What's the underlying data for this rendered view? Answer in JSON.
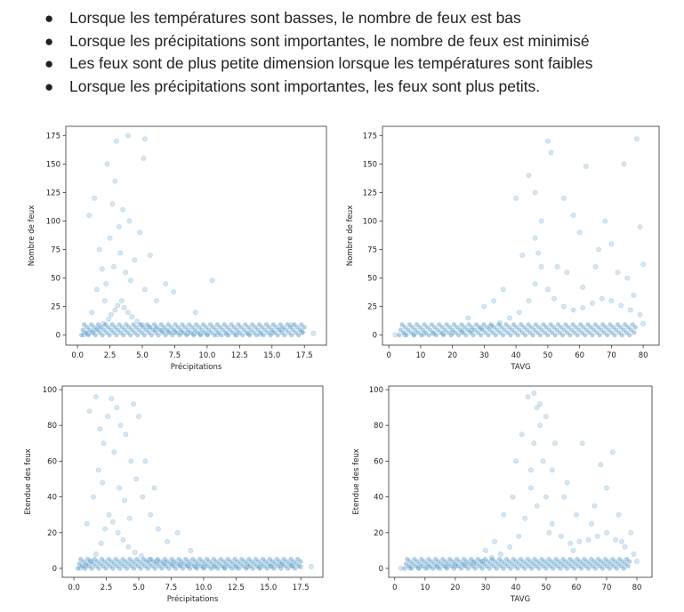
{
  "bullets": [
    "Lorsque les températures sont basses, le nombre de feux est bas",
    "Lorsque les précipitations sont importantes, le nombre de feux est minimisé",
    "Les feux sont de plus petite dimension lorsque les températures sont faibles",
    "Lorsque les précipitations sont importantes, les feux sont plus petits."
  ],
  "colors": {
    "points": "#1f77b4",
    "frame": "#333333"
  },
  "chart_data": [
    {
      "type": "scatter",
      "xlabel": "Précipitations",
      "ylabel": "Nombre de feux",
      "xlim": [
        -0.9,
        19.2
      ],
      "ylim": [
        -8.8,
        183
      ],
      "xticks": [
        "0.0",
        "2.5",
        "5.0",
        "7.5",
        "10.0",
        "12.5",
        "15.0",
        "17.5"
      ],
      "xtick_values": [
        0,
        2.5,
        5,
        7.5,
        10,
        12.5,
        15,
        17.5
      ],
      "yticks": [
        "0",
        "25",
        "50",
        "75",
        "100",
        "125",
        "150",
        "175"
      ],
      "ytick_values": [
        0,
        25,
        50,
        75,
        100,
        125,
        150,
        175
      ],
      "points": [
        [
          0.5,
          0.4
        ],
        [
          0.8,
          1.5
        ],
        [
          1.2,
          3
        ],
        [
          1.6,
          6
        ],
        [
          2.0,
          10
        ],
        [
          2.4,
          14
        ],
        [
          2.6,
          18
        ],
        [
          2.9,
          22
        ],
        [
          3.1,
          26
        ],
        [
          3.4,
          30
        ],
        [
          3.6,
          24
        ],
        [
          3.9,
          20
        ],
        [
          4.2,
          16
        ],
        [
          4.6,
          12
        ],
        [
          5.0,
          9
        ],
        [
          5.5,
          7
        ],
        [
          6.0,
          5
        ],
        [
          6.5,
          4
        ],
        [
          7.0,
          3
        ],
        [
          7.5,
          2.5
        ],
        [
          8.0,
          2
        ],
        [
          8.5,
          1.5
        ],
        [
          9.0,
          1.2
        ],
        [
          9.5,
          1
        ],
        [
          10.0,
          0.8
        ],
        [
          10.8,
          0.5
        ],
        [
          11.5,
          0.6
        ],
        [
          12.3,
          0.4
        ],
        [
          13.2,
          1
        ],
        [
          14.1,
          0.7
        ],
        [
          15.0,
          2
        ],
        [
          15.7,
          5
        ],
        [
          16.5,
          9
        ],
        [
          17.3,
          3
        ],
        [
          18.2,
          1.5
        ],
        [
          2.2,
          45
        ],
        [
          2.8,
          60
        ],
        [
          3.3,
          72
        ],
        [
          3.7,
          55
        ],
        [
          4.1,
          48
        ],
        [
          2.5,
          85
        ],
        [
          3.2,
          95
        ],
        [
          4.4,
          66
        ],
        [
          5.2,
          40
        ],
        [
          6.1,
          30
        ],
        [
          1.5,
          40
        ],
        [
          1.1,
          20
        ],
        [
          0.9,
          105
        ],
        [
          1.3,
          120
        ],
        [
          2.3,
          150
        ],
        [
          2.9,
          135
        ],
        [
          3.5,
          110
        ],
        [
          4.0,
          100
        ],
        [
          4.8,
          90
        ],
        [
          5.6,
          70
        ],
        [
          6.8,
          45
        ],
        [
          7.4,
          38
        ],
        [
          9.1,
          20
        ],
        [
          10.4,
          48
        ],
        [
          2.1,
          30
        ],
        [
          1.9,
          58
        ],
        [
          3.0,
          170
        ],
        [
          3.9,
          175
        ],
        [
          5.1,
          155
        ],
        [
          5.2,
          172
        ],
        [
          1.7,
          75
        ],
        [
          2.7,
          115
        ]
      ]
    },
    {
      "type": "scatter",
      "xlabel": "TAVG",
      "ylabel": "Nombre de feux",
      "xlim": [
        -2,
        85
      ],
      "ylim": [
        -8.8,
        183
      ],
      "xticks": [
        "0",
        "10",
        "20",
        "30",
        "40",
        "50",
        "60",
        "70",
        "80"
      ],
      "xtick_values": [
        0,
        10,
        20,
        30,
        40,
        50,
        60,
        70,
        80
      ],
      "yticks": [
        "0",
        "25",
        "50",
        "75",
        "100",
        "125",
        "150",
        "175"
      ],
      "ytick_values": [
        0,
        25,
        50,
        75,
        100,
        125,
        150,
        175
      ],
      "points": [
        [
          2,
          0.3
        ],
        [
          5,
          0.5
        ],
        [
          8,
          0.6
        ],
        [
          11,
          0.8
        ],
        [
          14,
          1
        ],
        [
          17,
          1.3
        ],
        [
          20,
          2
        ],
        [
          23,
          3
        ],
        [
          26,
          4
        ],
        [
          29,
          6
        ],
        [
          32,
          8
        ],
        [
          35,
          11
        ],
        [
          38,
          15
        ],
        [
          41,
          20
        ],
        [
          44,
          30
        ],
        [
          46,
          45
        ],
        [
          48,
          60
        ],
        [
          50,
          40
        ],
        [
          52,
          32
        ],
        [
          55,
          25
        ],
        [
          58,
          22
        ],
        [
          61,
          24
        ],
        [
          64,
          28
        ],
        [
          67,
          32
        ],
        [
          70,
          30
        ],
        [
          73,
          26
        ],
        [
          76,
          22
        ],
        [
          79,
          18
        ],
        [
          80,
          10
        ],
        [
          80,
          62
        ],
        [
          79,
          95
        ],
        [
          78,
          172
        ],
        [
          74,
          150
        ],
        [
          46,
          85
        ],
        [
          48,
          100
        ],
        [
          50,
          170
        ],
        [
          51,
          160
        ],
        [
          62,
          148
        ],
        [
          40,
          120
        ],
        [
          44,
          140
        ],
        [
          55,
          120
        ],
        [
          60,
          90
        ],
        [
          66,
          75
        ],
        [
          70,
          80
        ],
        [
          36,
          40
        ],
        [
          33,
          30
        ],
        [
          30,
          25
        ],
        [
          25,
          15
        ],
        [
          56,
          55
        ],
        [
          65,
          60
        ],
        [
          72,
          55
        ],
        [
          42,
          70
        ],
        [
          58,
          105
        ],
        [
          68,
          100
        ],
        [
          46,
          125
        ],
        [
          53,
          60
        ],
        [
          75,
          50
        ],
        [
          77,
          35
        ],
        [
          47,
          72
        ],
        [
          61,
          42
        ]
      ]
    },
    {
      "type": "scatter",
      "xlabel": "Précipitations",
      "ylabel": "Etendue des feux",
      "xlim": [
        -0.9,
        19.2
      ],
      "ylim": [
        -5,
        102
      ],
      "xticks": [
        "0.0",
        "2.5",
        "5.0",
        "7.5",
        "10.0",
        "12.5",
        "15.0",
        "17.5"
      ],
      "xtick_values": [
        0,
        2.5,
        5,
        7.5,
        10,
        12.5,
        15,
        17.5
      ],
      "yticks": [
        "0",
        "20",
        "40",
        "60",
        "80",
        "100"
      ],
      "ytick_values": [
        0,
        20,
        40,
        60,
        80,
        100
      ],
      "points": [
        [
          0.5,
          0.3
        ],
        [
          0.9,
          1.5
        ],
        [
          1.3,
          4
        ],
        [
          1.7,
          8
        ],
        [
          2.1,
          14
        ],
        [
          2.4,
          22
        ],
        [
          2.7,
          30
        ],
        [
          3.0,
          26
        ],
        [
          3.4,
          20
        ],
        [
          3.8,
          16
        ],
        [
          4.2,
          12
        ],
        [
          4.7,
          9
        ],
        [
          5.2,
          7
        ],
        [
          5.8,
          5
        ],
        [
          6.4,
          4
        ],
        [
          7.0,
          3
        ],
        [
          7.6,
          2.5
        ],
        [
          8.2,
          2
        ],
        [
          8.8,
          1.5
        ],
        [
          9.4,
          1
        ],
        [
          10.0,
          0.8
        ],
        [
          10.8,
          0.6
        ],
        [
          11.6,
          0.5
        ],
        [
          12.5,
          0.4
        ],
        [
          13.4,
          0.8
        ],
        [
          14.3,
          0.6
        ],
        [
          15.2,
          1
        ],
        [
          16.0,
          2
        ],
        [
          16.8,
          1.5
        ],
        [
          17.5,
          0.8
        ],
        [
          18.3,
          1
        ],
        [
          1.5,
          40
        ],
        [
          1.9,
          55
        ],
        [
          2.3,
          70
        ],
        [
          2.6,
          85
        ],
        [
          2.9,
          95
        ],
        [
          3.3,
          90
        ],
        [
          3.6,
          80
        ],
        [
          4.0,
          75
        ],
        [
          4.4,
          60
        ],
        [
          4.8,
          50
        ],
        [
          5.3,
          40
        ],
        [
          5.9,
          30
        ],
        [
          6.5,
          22
        ],
        [
          1.2,
          88
        ],
        [
          1.7,
          96
        ],
        [
          2.0,
          78
        ],
        [
          3.1,
          65
        ],
        [
          3.5,
          45
        ],
        [
          4.6,
          92
        ],
        [
          5.0,
          85
        ],
        [
          5.5,
          60
        ],
        [
          6.2,
          45
        ],
        [
          7.2,
          15
        ],
        [
          8.0,
          20
        ],
        [
          9.0,
          10
        ],
        [
          1.0,
          25
        ],
        [
          2.2,
          48
        ],
        [
          3.9,
          38
        ],
        [
          4.3,
          28
        ]
      ]
    },
    {
      "type": "scatter",
      "xlabel": "TAVG",
      "ylabel": "Etendue des feux",
      "xlim": [
        -2,
        85
      ],
      "ylim": [
        -5,
        102
      ],
      "xticks": [
        "0",
        "10",
        "20",
        "30",
        "40",
        "50",
        "60",
        "70",
        "80"
      ],
      "xtick_values": [
        0,
        10,
        20,
        30,
        40,
        50,
        60,
        70,
        80
      ],
      "yticks": [
        "0",
        "20",
        "40",
        "60",
        "80",
        "100"
      ],
      "ytick_values": [
        0,
        20,
        40,
        60,
        80,
        100
      ],
      "points": [
        [
          2,
          0.2
        ],
        [
          5,
          0.3
        ],
        [
          8,
          0.4
        ],
        [
          11,
          0.5
        ],
        [
          14,
          0.7
        ],
        [
          17,
          1
        ],
        [
          20,
          1.4
        ],
        [
          23,
          2
        ],
        [
          26,
          3
        ],
        [
          29,
          4
        ],
        [
          32,
          6
        ],
        [
          35,
          8
        ],
        [
          38,
          12
        ],
        [
          41,
          18
        ],
        [
          43,
          28
        ],
        [
          45,
          45
        ],
        [
          46,
          70
        ],
        [
          47,
          90
        ],
        [
          48,
          80
        ],
        [
          49,
          60
        ],
        [
          50,
          40
        ],
        [
          52,
          25
        ],
        [
          55,
          18
        ],
        [
          58,
          14
        ],
        [
          61,
          15
        ],
        [
          64,
          16
        ],
        [
          67,
          18
        ],
        [
          70,
          20
        ],
        [
          73,
          16
        ],
        [
          76,
          12
        ],
        [
          79,
          8
        ],
        [
          80,
          4
        ],
        [
          44,
          96
        ],
        [
          46,
          98
        ],
        [
          48,
          92
        ],
        [
          50,
          85
        ],
        [
          42,
          75
        ],
        [
          40,
          60
        ],
        [
          52,
          55
        ],
        [
          56,
          40
        ],
        [
          60,
          30
        ],
        [
          66,
          35
        ],
        [
          70,
          45
        ],
        [
          74,
          30
        ],
        [
          78,
          20
        ],
        [
          36,
          30
        ],
        [
          33,
          15
        ],
        [
          30,
          10
        ],
        [
          62,
          70
        ],
        [
          68,
          58
        ],
        [
          72,
          65
        ],
        [
          45,
          55
        ],
        [
          53,
          70
        ],
        [
          57,
          48
        ],
        [
          65,
          25
        ],
        [
          75,
          15
        ],
        [
          39,
          40
        ],
        [
          47,
          35
        ],
        [
          51,
          20
        ],
        [
          59,
          10
        ]
      ]
    }
  ]
}
